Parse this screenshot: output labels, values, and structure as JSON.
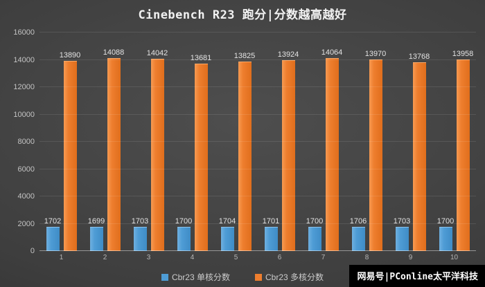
{
  "title": "Cinebench R23 跑分|分数越高越好",
  "watermark": "网易号|PConline太平洋科技",
  "legend": [
    {
      "label": "Cbr23 单核分数",
      "color": "#4e9cd5"
    },
    {
      "label": "Cbr23 多核分数",
      "color": "#ee7e2e"
    }
  ],
  "chart_data": {
    "type": "bar",
    "title": "Cinebench R23 跑分|分数越高越好",
    "categories": [
      "1",
      "2",
      "3",
      "4",
      "5",
      "6",
      "7",
      "8",
      "9",
      "10"
    ],
    "series": [
      {
        "name": "Cbr23 单核分数",
        "color": "#4e9cd5",
        "values": [
          1702,
          1699,
          1703,
          1700,
          1704,
          1701,
          1700,
          1706,
          1703,
          1700
        ]
      },
      {
        "name": "Cbr23 多核分数",
        "color": "#ee7e2e",
        "values": [
          13890,
          14088,
          14042,
          13681,
          13825,
          13924,
          14064,
          13970,
          13768,
          13958
        ]
      }
    ],
    "xlabel": "",
    "ylabel": "",
    "ylim": [
      0,
      16000
    ],
    "ytick_step": 2000,
    "grid": true,
    "legend_position": "bottom",
    "data_labels": true
  }
}
